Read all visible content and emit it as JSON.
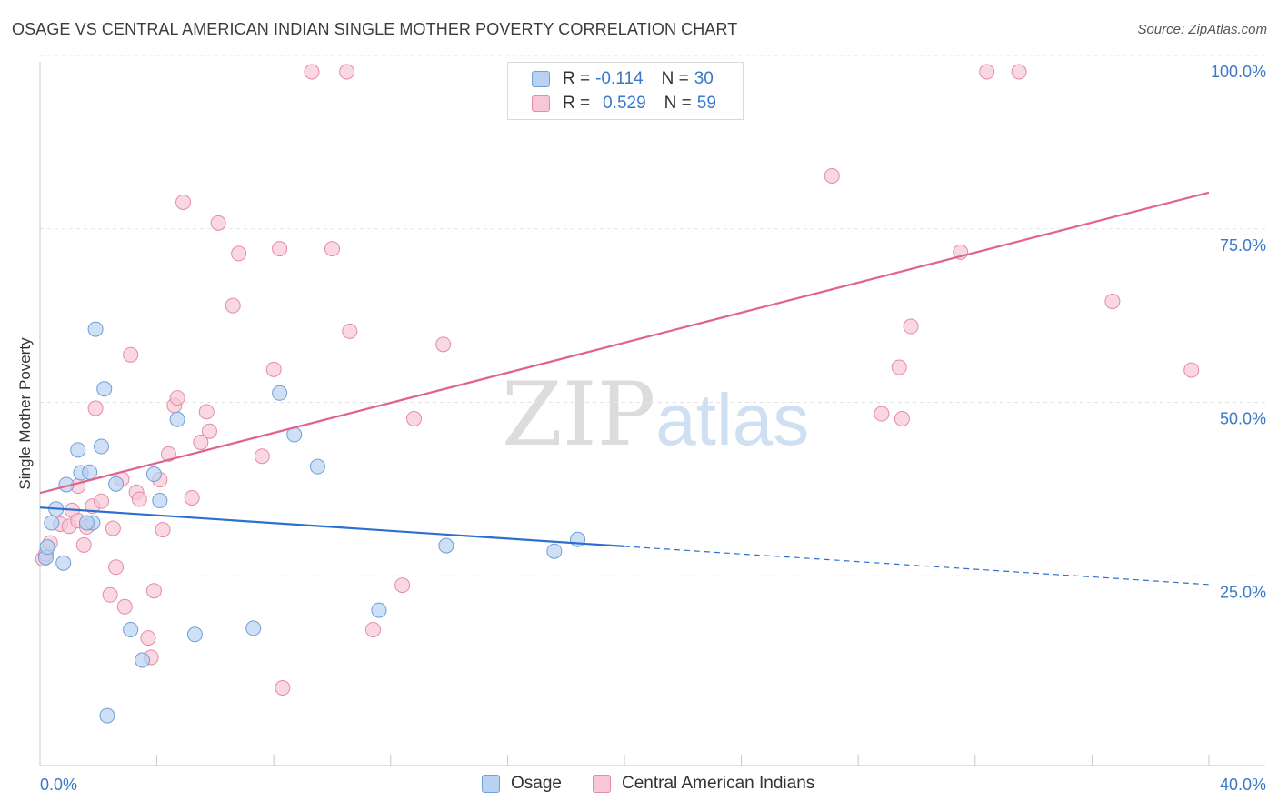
{
  "header": {
    "title": "OSAGE VS CENTRAL AMERICAN INDIAN SINGLE MOTHER POVERTY CORRELATION CHART",
    "source": "Source: ZipAtlas.com"
  },
  "legend": {
    "rows": [
      {
        "r_label": "R = ",
        "r_value": "-0.114",
        "n_label": "N = ",
        "n_value": "30"
      },
      {
        "r_label": "R = ",
        "r_value": "0.529",
        "n_label": "N = ",
        "n_value": "59"
      }
    ]
  },
  "bottom_legend": {
    "series1": "Osage",
    "series2": "Central American Indians"
  },
  "watermark": {
    "zip": "ZIP",
    "atlas": "atlas"
  },
  "colors": {
    "osage_fill": "#b9d2f2",
    "osage_stroke": "#6e9fd8",
    "osage_line": "#2b6fcf",
    "cai_fill": "#f7c7d6",
    "cai_stroke": "#e58aa8",
    "cai_line": "#e0648f",
    "axis_label": "#3a78c9",
    "grid": "#e3e3e3"
  },
  "chart_data": {
    "type": "scatter",
    "title": "OSAGE VS CENTRAL AMERICAN INDIAN SINGLE MOTHER POVERTY CORRELATION CHART",
    "xlabel": "",
    "ylabel": "Single Mother Poverty",
    "xlim": [
      0,
      40
    ],
    "ylim": [
      0,
      105
    ],
    "x_tick_labels": [
      {
        "value": 0,
        "label": "0.0%"
      },
      {
        "value": 40,
        "label": "40.0%"
      }
    ],
    "y_tick_labels": [
      {
        "value": 25,
        "label": "25.0%"
      },
      {
        "value": 50,
        "label": "50.0%"
      },
      {
        "value": 75,
        "label": "75.0%"
      },
      {
        "value": 100,
        "label": "100.0%"
      }
    ],
    "grid": true,
    "legend_position": "top-center",
    "series": [
      {
        "name": "Osage",
        "r": -0.114,
        "n": 30,
        "points": [
          [
            0.2,
            30.0
          ],
          [
            0.25,
            31.5
          ],
          [
            0.4,
            35.0
          ],
          [
            0.55,
            37.0
          ],
          [
            0.8,
            29.2
          ],
          [
            0.9,
            40.5
          ],
          [
            1.3,
            45.5
          ],
          [
            1.4,
            42.2
          ],
          [
            1.7,
            42.3
          ],
          [
            1.8,
            35.0
          ],
          [
            1.6,
            35.0
          ],
          [
            1.9,
            62.9
          ],
          [
            2.1,
            46.0
          ],
          [
            2.2,
            54.3
          ],
          [
            2.3,
            7.2
          ],
          [
            2.6,
            40.6
          ],
          [
            3.1,
            19.6
          ],
          [
            3.5,
            15.2
          ],
          [
            3.9,
            42.0
          ],
          [
            4.1,
            38.2
          ],
          [
            4.7,
            49.9
          ],
          [
            5.3,
            18.9
          ],
          [
            7.3,
            19.8
          ],
          [
            8.2,
            53.7
          ],
          [
            8.7,
            47.7
          ],
          [
            9.5,
            43.1
          ],
          [
            11.6,
            22.4
          ],
          [
            13.9,
            31.7
          ],
          [
            17.6,
            30.9
          ],
          [
            18.4,
            32.6
          ]
        ],
        "trend": {
          "x0": 0,
          "y0": 37.2,
          "x1": 20,
          "y1": 31.6,
          "dashed_to_x": 40,
          "dashed_to_y": 26.1
        }
      },
      {
        "name": "Central American Indians",
        "r": 0.529,
        "n": 59,
        "points": [
          [
            0.1,
            29.8
          ],
          [
            0.2,
            30.5
          ],
          [
            0.35,
            32.1
          ],
          [
            0.7,
            34.8
          ],
          [
            1.0,
            34.5
          ],
          [
            1.1,
            36.8
          ],
          [
            1.3,
            35.3
          ],
          [
            1.3,
            40.3
          ],
          [
            1.5,
            31.8
          ],
          [
            1.6,
            34.4
          ],
          [
            1.8,
            37.4
          ],
          [
            1.9,
            51.5
          ],
          [
            2.1,
            38.1
          ],
          [
            2.4,
            24.6
          ],
          [
            2.5,
            34.2
          ],
          [
            2.6,
            28.6
          ],
          [
            2.8,
            41.3
          ],
          [
            2.9,
            22.9
          ],
          [
            3.1,
            59.2
          ],
          [
            3.3,
            39.4
          ],
          [
            3.4,
            38.4
          ],
          [
            3.7,
            18.4
          ],
          [
            3.8,
            15.6
          ],
          [
            3.9,
            25.2
          ],
          [
            4.1,
            41.2
          ],
          [
            4.2,
            34.0
          ],
          [
            4.4,
            44.9
          ],
          [
            4.6,
            51.9
          ],
          [
            4.7,
            53.0
          ],
          [
            4.9,
            81.2
          ],
          [
            5.2,
            38.6
          ],
          [
            5.5,
            46.6
          ],
          [
            5.7,
            51.0
          ],
          [
            5.8,
            48.2
          ],
          [
            6.1,
            78.2
          ],
          [
            6.6,
            66.3
          ],
          [
            6.8,
            73.8
          ],
          [
            7.6,
            44.6
          ],
          [
            8.0,
            57.1
          ],
          [
            8.2,
            74.5
          ],
          [
            8.3,
            11.2
          ],
          [
            9.3,
            100.0
          ],
          [
            10.0,
            74.5
          ],
          [
            10.5,
            100.0
          ],
          [
            10.6,
            62.6
          ],
          [
            11.4,
            19.6
          ],
          [
            12.4,
            26.0
          ],
          [
            12.8,
            50.0
          ],
          [
            13.8,
            60.7
          ],
          [
            27.1,
            85.0
          ],
          [
            28.8,
            50.7
          ],
          [
            29.4,
            57.4
          ],
          [
            29.5,
            50.0
          ],
          [
            29.8,
            63.3
          ],
          [
            31.5,
            74.0
          ],
          [
            32.4,
            100.0
          ],
          [
            33.5,
            100.0
          ],
          [
            36.7,
            66.9
          ],
          [
            39.4,
            57.0
          ]
        ],
        "trend": {
          "x0": 0,
          "y0": 39.3,
          "x1": 40,
          "y1": 82.6
        }
      }
    ]
  }
}
